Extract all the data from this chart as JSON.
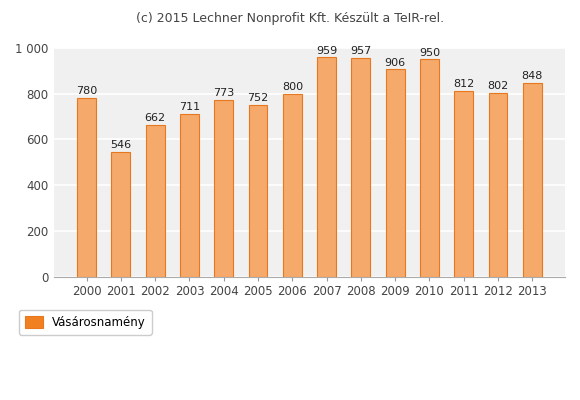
{
  "years": [
    2000,
    2001,
    2002,
    2003,
    2004,
    2005,
    2006,
    2007,
    2008,
    2009,
    2010,
    2011,
    2012,
    2013
  ],
  "values": [
    780,
    546,
    662,
    711,
    773,
    752,
    800,
    959,
    957,
    906,
    950,
    812,
    802,
    848
  ],
  "bar_fill_color": "#F5A96B",
  "bar_edge_color": "#E87820",
  "title": "(c) 2015 Lechner Nonprofit Kft. Készült a TeIR-rel.",
  "title_fontsize": 9,
  "ylim": [
    0,
    1000
  ],
  "ytick_values": [
    0,
    200,
    400,
    600,
    800,
    1000
  ],
  "ytick_labels": [
    "0",
    "200",
    "400",
    "600",
    "800",
    "1 000"
  ],
  "legend_label": "Vásárosnamény",
  "legend_color": "#F08020",
  "background_color": "#ffffff",
  "plot_bg_color": "#f0f0f0",
  "grid_color": "#ffffff",
  "label_fontsize": 8,
  "tick_fontsize": 8.5,
  "bar_width": 0.55
}
